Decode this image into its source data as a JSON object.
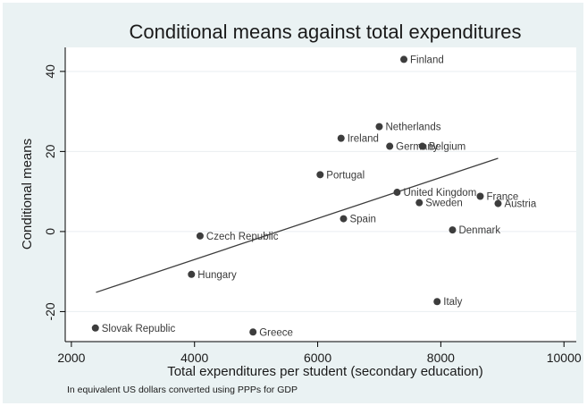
{
  "chart_data": {
    "type": "scatter",
    "title": "Conditional means against total expenditures",
    "xlabel": "Total expenditures per student (secondary education)",
    "ylabel": "Conditional means",
    "note": "In equivalent US dollars converted using PPPs for GDP",
    "xlim": [
      1900,
      10200
    ],
    "ylim": [
      -27.5,
      46
    ],
    "xticks": [
      2000,
      4000,
      6000,
      8000,
      10000
    ],
    "yticks": [
      -20,
      0,
      20,
      40
    ],
    "grid": true,
    "points": [
      {
        "label": "Finland",
        "x": 7400,
        "y": 43
      },
      {
        "label": "Netherlands",
        "x": 7000,
        "y": 26.2
      },
      {
        "label": "Ireland",
        "x": 6380,
        "y": 23.3
      },
      {
        "label": "Germany",
        "x": 7170,
        "y": 21.3
      },
      {
        "label": "Belgium",
        "x": 7700,
        "y": 21.3
      },
      {
        "label": "Portugal",
        "x": 6040,
        "y": 14.2
      },
      {
        "label": "United Kingdom",
        "x": 7290,
        "y": 9.8
      },
      {
        "label": "France",
        "x": 8640,
        "y": 8.8
      },
      {
        "label": "Austria",
        "x": 8930,
        "y": 7
      },
      {
        "label": "Sweden",
        "x": 7650,
        "y": 7.2
      },
      {
        "label": "Spain",
        "x": 6420,
        "y": 3.2
      },
      {
        "label": "Denmark",
        "x": 8190,
        "y": 0.4
      },
      {
        "label": "Czech Republic",
        "x": 4090,
        "y": -1.1
      },
      {
        "label": "Hungary",
        "x": 3950,
        "y": -10.7
      },
      {
        "label": "Italy",
        "x": 7940,
        "y": -17.5
      },
      {
        "label": "Slovak Republic",
        "x": 2390,
        "y": -24.1
      },
      {
        "label": "Greece",
        "x": 4950,
        "y": -25.1
      }
    ],
    "fit_line": {
      "x": [
        2400,
        8930
      ],
      "y": [
        -15.2,
        18.3
      ]
    },
    "colors": {
      "background": "#eaf2f3",
      "plot_background": "#ffffff",
      "marker": "#3d3d3d",
      "line": "#3d3d3d",
      "grid": "#e9eef0"
    }
  }
}
